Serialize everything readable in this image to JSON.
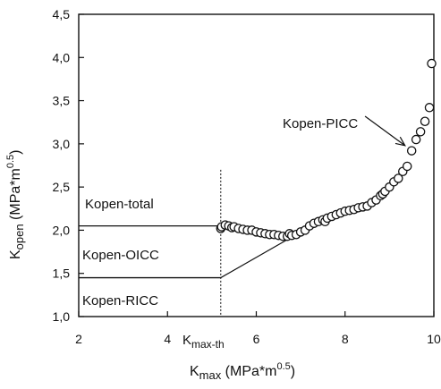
{
  "chart_data": {
    "type": "scatter",
    "xlim": [
      2,
      10
    ],
    "ylim": [
      1.0,
      4.5
    ],
    "x_ticks": [
      2,
      4,
      6,
      8,
      10
    ],
    "x_tick_labels": [
      "2",
      "4",
      "6",
      "8",
      "10"
    ],
    "y_ticks": [
      1.0,
      1.5,
      2.0,
      2.5,
      3.0,
      3.5,
      4.0,
      4.5
    ],
    "y_tick_labels": [
      "1,0",
      "1,5",
      "2,0",
      "2,5",
      "3,0",
      "3,5",
      "4,0",
      "4,5"
    ],
    "grid": false,
    "xlabel": {
      "main": "K",
      "sub": "max",
      "unit": " (MPa*m",
      "exp": "0.5",
      "close": ")"
    },
    "ylabel": {
      "main": "K",
      "sub": "open",
      "unit": " (MPa*m",
      "exp": "0.5",
      "close": ")"
    },
    "kmax_th": {
      "x": 5.2,
      "label_main": "K",
      "label_sub": "max-th"
    },
    "total_level": {
      "y": 2.05,
      "x_from": 2,
      "x_to": 5.2
    },
    "ricc_level": {
      "y": 1.45,
      "x_from": 2,
      "x_to": 5.2
    },
    "ricc_ramp": {
      "x": [
        5.2,
        6.9
      ],
      "y": [
        1.45,
        1.95
      ]
    },
    "annotations": {
      "total": "Kopen-total",
      "oicc": "Kopen-OICC",
      "ricc": "Kopen-RICC",
      "picc": "Kopen-PICC"
    },
    "picc_arrow": {
      "from": [
        8.45,
        3.32
      ],
      "to": [
        9.35,
        2.98
      ]
    },
    "series": [
      {
        "marker": "open-circle",
        "points": [
          [
            5.2,
            2.02
          ],
          [
            5.22,
            2.04
          ],
          [
            5.3,
            2.06
          ],
          [
            5.38,
            2.05
          ],
          [
            5.45,
            2.03
          ],
          [
            5.5,
            2.04
          ],
          [
            5.6,
            2.02
          ],
          [
            5.7,
            2.01
          ],
          [
            5.8,
            2.0
          ],
          [
            5.9,
            2.0
          ],
          [
            6.0,
            1.98
          ],
          [
            6.1,
            1.97
          ],
          [
            6.2,
            1.96
          ],
          [
            6.3,
            1.95
          ],
          [
            6.4,
            1.95
          ],
          [
            6.5,
            1.94
          ],
          [
            6.6,
            1.93
          ],
          [
            6.7,
            1.93
          ],
          [
            6.75,
            1.96
          ],
          [
            6.8,
            1.94
          ],
          [
            6.9,
            1.95
          ],
          [
            7.0,
            1.98
          ],
          [
            7.1,
            2.0
          ],
          [
            7.2,
            2.05
          ],
          [
            7.3,
            2.08
          ],
          [
            7.4,
            2.1
          ],
          [
            7.5,
            2.12
          ],
          [
            7.55,
            2.1
          ],
          [
            7.6,
            2.14
          ],
          [
            7.7,
            2.16
          ],
          [
            7.8,
            2.18
          ],
          [
            7.9,
            2.2
          ],
          [
            8.0,
            2.22
          ],
          [
            8.1,
            2.23
          ],
          [
            8.2,
            2.24
          ],
          [
            8.3,
            2.26
          ],
          [
            8.4,
            2.27
          ],
          [
            8.5,
            2.28
          ],
          [
            8.6,
            2.32
          ],
          [
            8.7,
            2.35
          ],
          [
            8.8,
            2.4
          ],
          [
            8.85,
            2.42
          ],
          [
            8.9,
            2.45
          ],
          [
            9.0,
            2.5
          ],
          [
            9.1,
            2.56
          ],
          [
            9.2,
            2.6
          ],
          [
            9.3,
            2.68
          ],
          [
            9.4,
            2.74
          ],
          [
            9.5,
            2.92
          ],
          [
            9.6,
            3.05
          ],
          [
            9.7,
            3.14
          ],
          [
            9.8,
            3.26
          ],
          [
            9.9,
            3.42
          ],
          [
            9.95,
            3.93
          ]
        ]
      }
    ]
  }
}
